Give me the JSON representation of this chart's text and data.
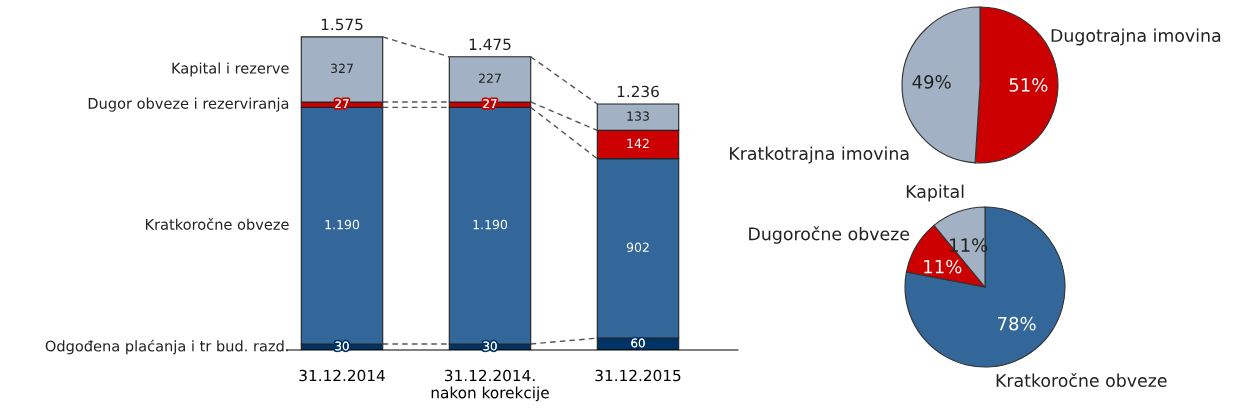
{
  "chart_data": [
    {
      "type": "bar",
      "stacked": true,
      "categories": [
        "31.12.2014",
        "31.12.2014.\nnakon korekcije",
        "31.12.2015"
      ],
      "series": [
        {
          "name": "Odgođena plaćanja i tr bud. razd.",
          "color": "#003366",
          "values": [
            30,
            30,
            60
          ],
          "value_labels": [
            "30",
            "30",
            "60"
          ]
        },
        {
          "name": "Kratkoročne obveze",
          "color": "#336699",
          "values": [
            1190,
            1190,
            902
          ],
          "value_labels": [
            "1.190",
            "1.190",
            "902"
          ]
        },
        {
          "name": "Dugor obveze i rezerviranja",
          "color": "#cc0000",
          "values": [
            27,
            27,
            142
          ],
          "value_labels": [
            "27",
            "27",
            "142"
          ]
        },
        {
          "name": "Kapital i rezerve",
          "color": "#a2b1c3",
          "values": [
            327,
            227,
            133
          ],
          "value_labels": [
            "327",
            "227",
            "133"
          ]
        }
      ],
      "totals": [
        "1.575",
        "1.475",
        "1.236"
      ],
      "legend": false,
      "grid": false
    },
    {
      "type": "pie",
      "categories": [
        "Dugotrajna imovina",
        "Kratkotrajna imovina"
      ],
      "values": [
        51,
        49
      ],
      "colors": [
        "#cc0000",
        "#a2b1c3"
      ],
      "value_labels": [
        "51%",
        "49%"
      ]
    },
    {
      "type": "pie",
      "categories": [
        "Kratkoročne obveze",
        "Dugoročne obveze",
        "Kapital"
      ],
      "values": [
        78,
        11,
        11
      ],
      "colors": [
        "#336699",
        "#cc0000",
        "#a2b1c3"
      ],
      "value_labels": [
        "78%",
        "11%",
        "11%"
      ]
    }
  ]
}
